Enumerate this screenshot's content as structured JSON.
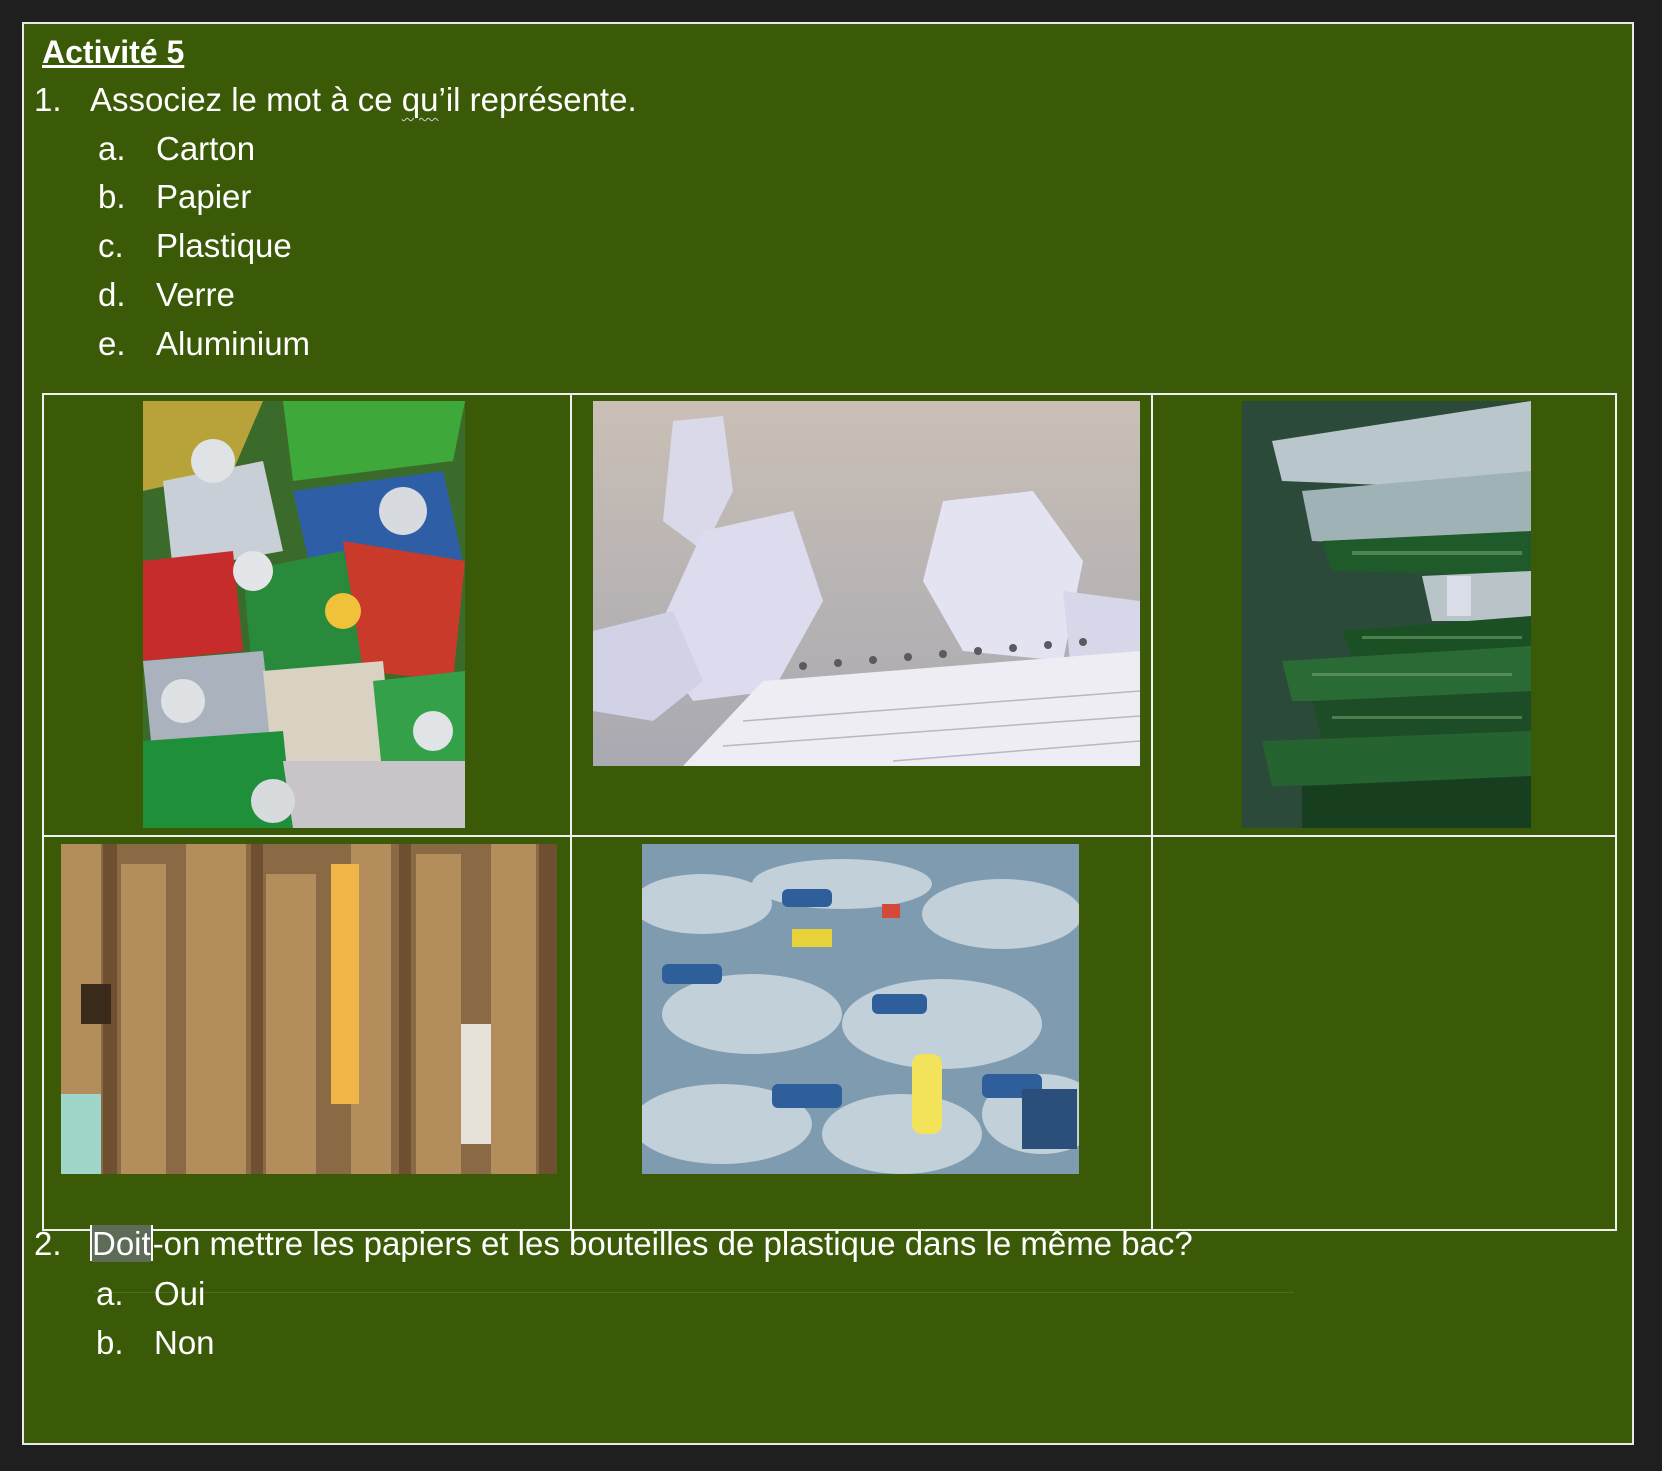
{
  "heading": "Activité 5",
  "question1": {
    "number": "1.",
    "text_before": "Associez le mot à ce ",
    "text_marked": "qu",
    "text_after": "’il représente.",
    "options": [
      {
        "letter": "a.",
        "label": "Carton"
      },
      {
        "letter": "b.",
        "label": "Papier"
      },
      {
        "letter": "c.",
        "label": "Plastique"
      },
      {
        "letter": "d.",
        "label": "Verre"
      },
      {
        "letter": "e.",
        "label": "Aluminium"
      }
    ]
  },
  "question2": {
    "number": "2.",
    "text_selected": "Doit",
    "text_rest": "-on mettre les papiers et les bouteilles de plastique dans le même bac?",
    "options": [
      {
        "letter": "a.",
        "label": "Oui"
      },
      {
        "letter": "b.",
        "label": "Non"
      }
    ]
  },
  "photos": [
    "crushed-aluminium-cans",
    "crumpled-paper",
    "glass-bottles",
    "flattened-cardboard",
    "plastic-bottles"
  ],
  "colors": {
    "page_background": "#3b5a07",
    "table_border": "#f0f0f0",
    "text": "#ffffff"
  }
}
